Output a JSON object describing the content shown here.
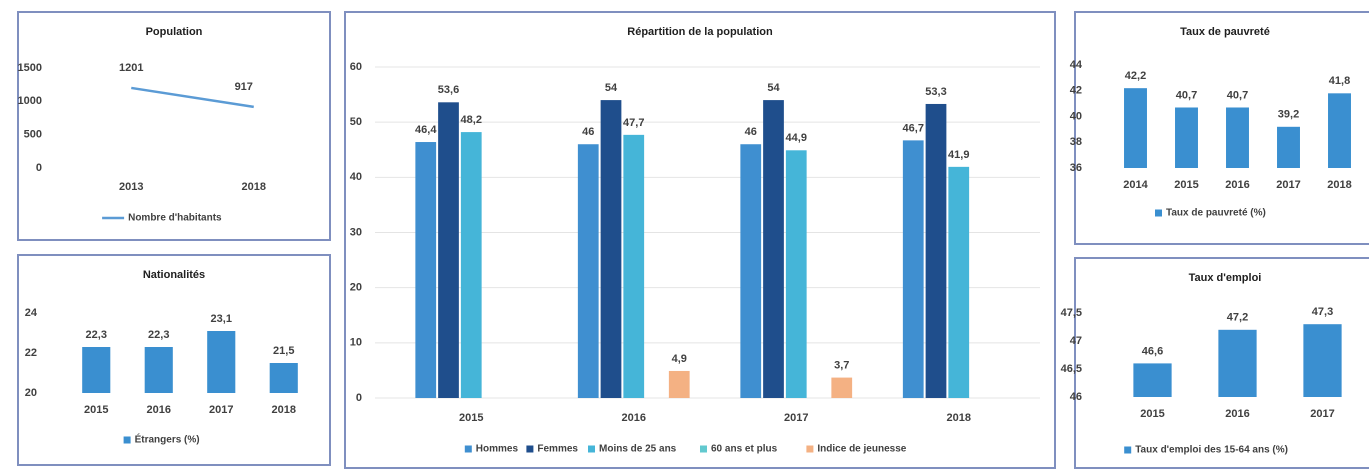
{
  "chart_data": [
    {
      "type": "line",
      "title": "Population",
      "categories": [
        "2013",
        "2018"
      ],
      "series": [
        {
          "name": "Nombre d'habitants",
          "color": "#5b9bd5",
          "values": [
            1201,
            917
          ]
        }
      ],
      "ylim": [
        0,
        1500
      ],
      "yticks": [
        0,
        500,
        1000,
        1500
      ],
      "grid": false,
      "legend": "bottom"
    },
    {
      "type": "bar",
      "title": "Nationalités",
      "categories": [
        "2015",
        "2016",
        "2017",
        "2018"
      ],
      "series": [
        {
          "name": "Étrangers (%)",
          "color": "#3a8fd0",
          "values": [
            22.3,
            22.3,
            23.1,
            21.5
          ],
          "value_labels": [
            "22,3",
            "22,3",
            "23,1",
            "21,5"
          ]
        }
      ],
      "ylim": [
        20,
        24
      ],
      "yticks": [
        20,
        22,
        24
      ],
      "grid": false,
      "legend": "bottom"
    },
    {
      "type": "bar",
      "title": "Répartition de la population",
      "categories": [
        "2015",
        "2016",
        "2017",
        "2018"
      ],
      "series": [
        {
          "name": "Hommes",
          "color": "#3f8fd0",
          "values": [
            46.4,
            46,
            46,
            46.7
          ],
          "value_labels": [
            "46,4",
            "46",
            "46",
            "46,7"
          ]
        },
        {
          "name": "Femmes",
          "color": "#1f4e8c",
          "values": [
            53.6,
            54,
            54,
            53.3
          ],
          "value_labels": [
            "53,6",
            "54",
            "54",
            "53,3"
          ]
        },
        {
          "name": "Moins de 25 ans",
          "color": "#45b5d8",
          "values": [
            48.2,
            47.7,
            44.9,
            41.9
          ],
          "value_labels": [
            "48,2",
            "47,7",
            "44,9",
            "41,9"
          ]
        },
        {
          "name": "60 ans et plus",
          "color": "#62c9cf",
          "values": [
            null,
            null,
            null,
            null
          ]
        },
        {
          "name": "Indice de jeunesse",
          "color": "#f4b183",
          "values": [
            null,
            4.9,
            3.7,
            null
          ],
          "value_labels": [
            null,
            "4,9",
            "3,7",
            null
          ]
        }
      ],
      "ylim": [
        0,
        60
      ],
      "yticks": [
        0,
        10,
        20,
        30,
        40,
        50,
        60
      ],
      "grid": true,
      "legend": "bottom"
    },
    {
      "type": "bar",
      "title": "Taux de pauvreté",
      "categories": [
        "2014",
        "2015",
        "2016",
        "2017",
        "2018"
      ],
      "series": [
        {
          "name": "Taux de pauvreté (%)",
          "color": "#3a8fd0",
          "values": [
            42.2,
            40.7,
            40.7,
            39.2,
            41.8
          ],
          "value_labels": [
            "42,2",
            "40,7",
            "40,7",
            "39,2",
            "41,8"
          ]
        }
      ],
      "ylim": [
        36,
        44
      ],
      "yticks": [
        36,
        38,
        40,
        42,
        44
      ],
      "grid": false,
      "legend": "bottom"
    },
    {
      "type": "bar",
      "title": "Taux d'emploi",
      "categories": [
        "2015",
        "2016",
        "2017"
      ],
      "series": [
        {
          "name": "Taux d'emploi des 15-64 ans (%)",
          "color": "#3a8fd0",
          "values": [
            46.6,
            47.2,
            47.3
          ],
          "value_labels": [
            "46,6",
            "47,2",
            "47,3"
          ]
        }
      ],
      "ylim": [
        46,
        47.5
      ],
      "yticks": [
        46,
        {
          "value": 46.5,
          "label": "46,5"
        },
        47,
        {
          "value": 47.5,
          "label": "47,5"
        }
      ],
      "grid": false,
      "legend": "bottom"
    }
  ]
}
